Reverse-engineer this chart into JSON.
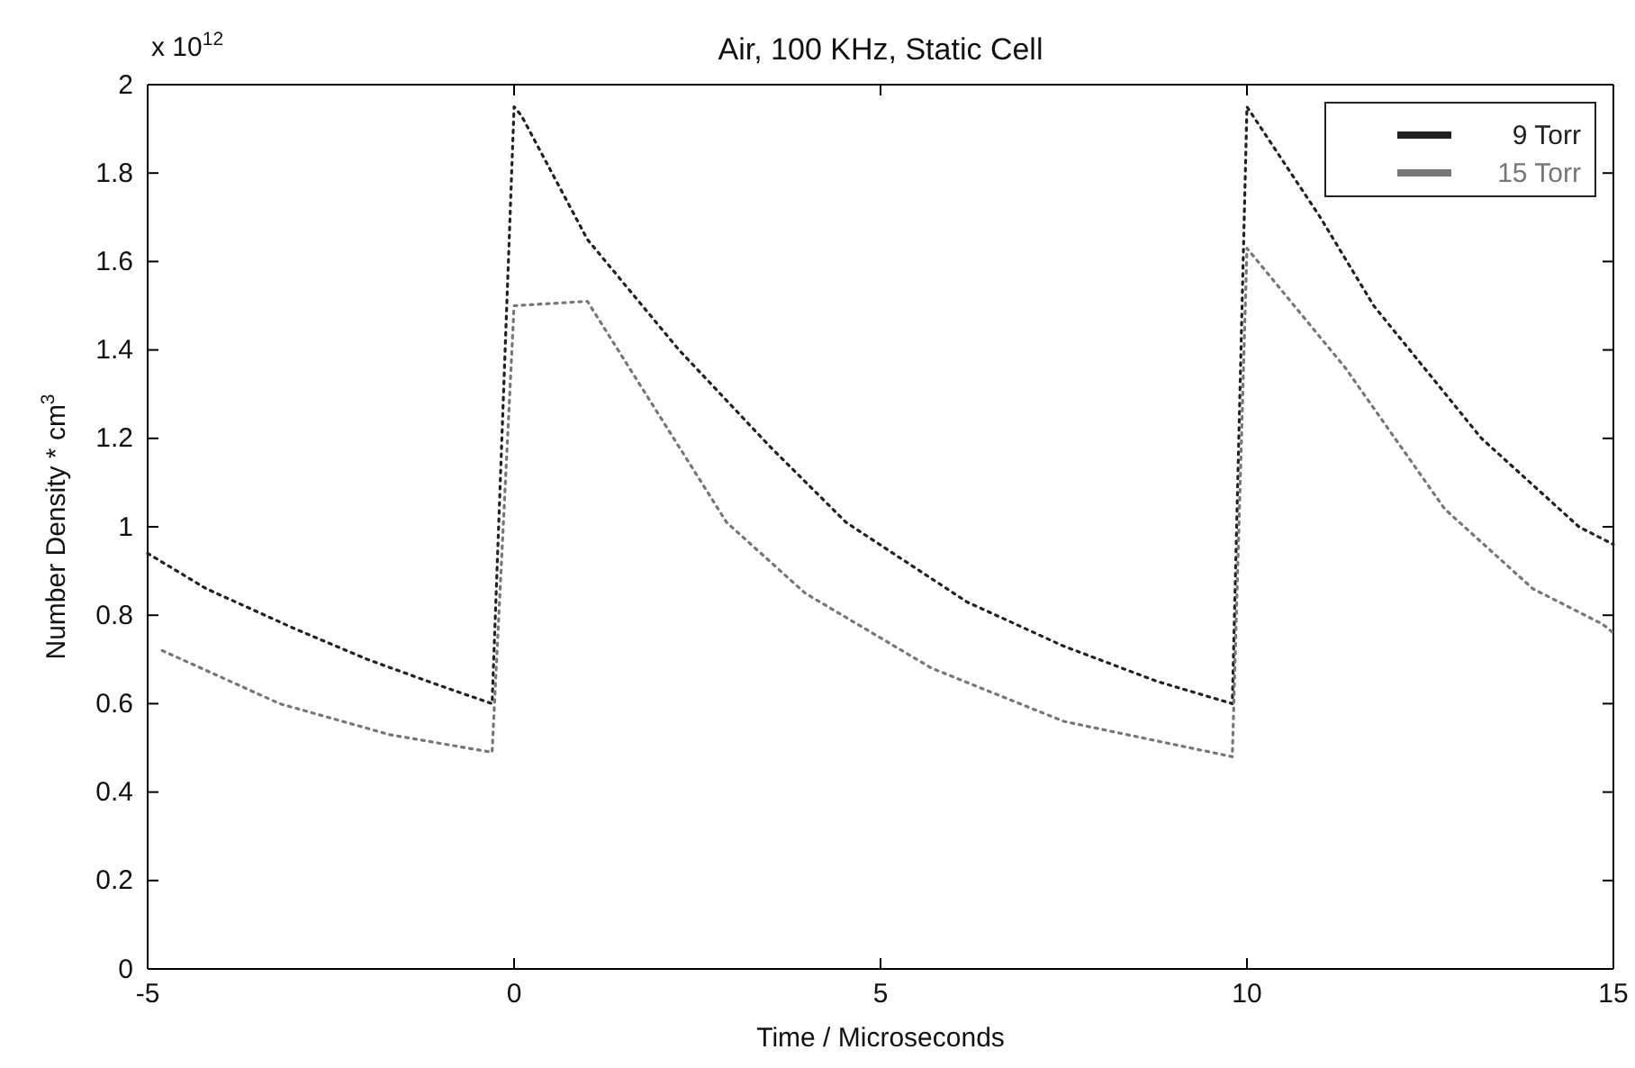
{
  "chart_data": {
    "type": "line",
    "title": "Air, 100 KHz, Static Cell",
    "xlabel": "Time / Microseconds",
    "ylabel": "Number Density * cm$^{3}$",
    "annotations": [
      "x 10$^{12}$"
    ],
    "xlim": [
      -5,
      15
    ],
    "xticks": [
      -5,
      0,
      5,
      10,
      15
    ],
    "ylim": [
      0,
      2
    ],
    "yticks": [
      0,
      0.2,
      0.4,
      0.6,
      0.8,
      1,
      1.2,
      1.4,
      1.6,
      1.8,
      2
    ],
    "legend": "top right",
    "line_style": "dotted",
    "marker": "none",
    "grid": false,
    "series": [
      {
        "name": "9 Torr",
        "color": "#222222",
        "x": [
          -5,
          -4.2,
          -3,
          -2,
          -1,
          -0.3,
          0,
          0.1,
          1,
          2.25,
          3.5,
          4.53,
          6.18,
          7.5,
          8.78,
          9.8,
          10,
          10.16,
          11,
          11.73,
          13.2,
          14.53,
          15
        ],
        "values": [
          0.94,
          0.86,
          0.77,
          0.7,
          0.64,
          0.6,
          1.95,
          1.93,
          1.65,
          1.4,
          1.18,
          1.01,
          0.83,
          0.73,
          0.65,
          0.6,
          1.95,
          1.91,
          1.7,
          1.5,
          1.2,
          1,
          0.96
        ]
      },
      {
        "name": "15 Torr",
        "color": "#777777",
        "x": [
          -4.8,
          -3.2,
          -1.7,
          -0.3,
          0,
          1,
          2.9,
          3.97,
          5.7,
          7.5,
          9.8,
          10,
          11.34,
          12.7,
          13.9,
          14.85,
          15
        ],
        "values": [
          0.72,
          0.6,
          0.53,
          0.49,
          1.5,
          1.51,
          1.01,
          0.85,
          0.68,
          0.56,
          0.48,
          1.63,
          1.36,
          1.04,
          0.86,
          0.78,
          0.76
        ]
      }
    ]
  }
}
